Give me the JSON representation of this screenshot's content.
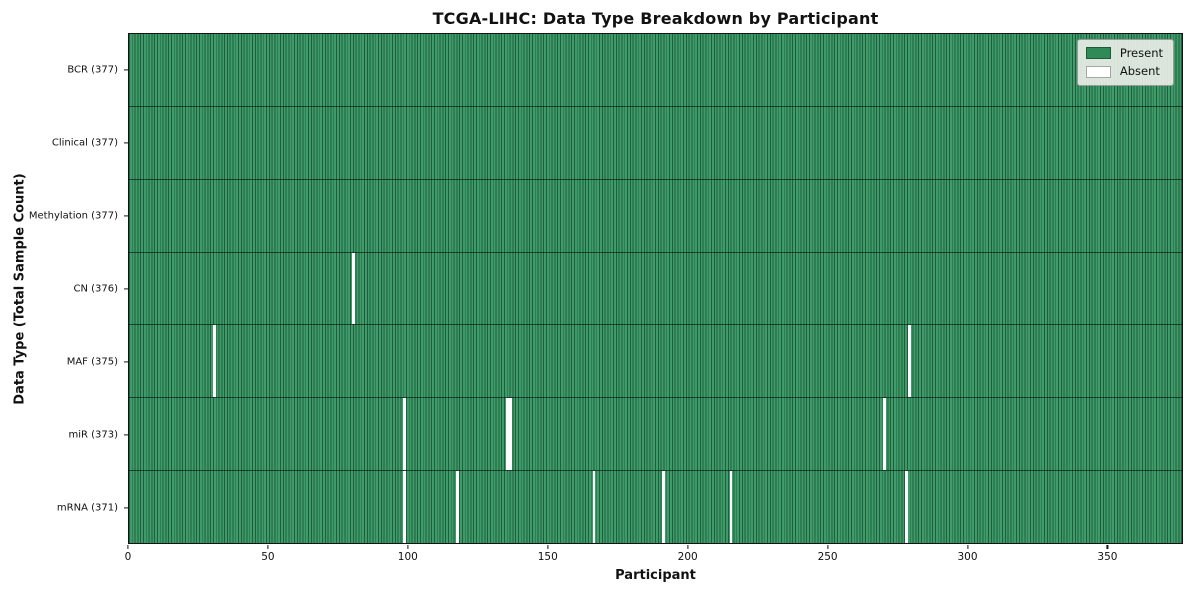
{
  "chart_data": {
    "type": "heatmap",
    "title": "TCGA-LIHC: Data Type Breakdown by Participant",
    "xlabel": "Participant",
    "ylabel": "Data Type (Total Sample Count)",
    "x_range": [
      0,
      377
    ],
    "x_ticks": [
      0,
      50,
      100,
      150,
      200,
      250,
      300,
      350
    ],
    "grid": false,
    "legend_position": "upper right",
    "legend": [
      {
        "label": "Present",
        "color": "#2e8b57"
      },
      {
        "label": "Absent",
        "color": "#ffffff"
      }
    ],
    "colors": {
      "present_fill": "#3f9c6a",
      "present_edge": "#1e5e3c",
      "absent": "#ffffff",
      "row_separator": "rgba(0,0,0,0.55)"
    },
    "rows": [
      {
        "data_type": "BCR",
        "label": "BCR (377)",
        "total": 377,
        "absent_participants": []
      },
      {
        "data_type": "Clinical",
        "label": "Clinical (377)",
        "total": 377,
        "absent_participants": []
      },
      {
        "data_type": "Methylation",
        "label": "Methylation (377)",
        "total": 377,
        "absent_participants": []
      },
      {
        "data_type": "CN",
        "label": "CN (376)",
        "total": 376,
        "absent_participants": [
          80
        ]
      },
      {
        "data_type": "MAF",
        "label": "MAF (375)",
        "total": 375,
        "absent_participants": [
          30,
          279
        ]
      },
      {
        "data_type": "miR",
        "label": "miR (373)",
        "total": 373,
        "absent_participants": [
          98,
          135,
          136,
          270
        ]
      },
      {
        "data_type": "mRNA",
        "label": "mRNA (371)",
        "total": 371,
        "absent_participants": [
          98,
          117,
          166,
          191,
          215,
          278
        ]
      }
    ]
  }
}
